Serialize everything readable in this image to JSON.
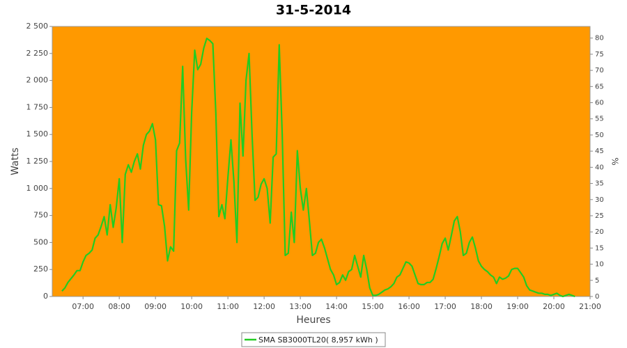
{
  "chart_data": {
    "type": "line",
    "title": "31-5-2014",
    "x_label": "Heures",
    "y_label": "Watts",
    "y2_label": "%",
    "background": "#ff9900",
    "grid": false,
    "legend": "bottom",
    "x": [
      "06:25",
      "06:30",
      "06:35",
      "06:45",
      "06:50",
      "06:55",
      "07:00",
      "07:05",
      "07:10",
      "07:15",
      "07:20",
      "07:25",
      "07:30",
      "07:35",
      "07:40",
      "07:45",
      "07:50",
      "07:55",
      "08:00",
      "08:05",
      "08:10",
      "08:15",
      "08:20",
      "08:25",
      "08:30",
      "08:35",
      "08:40",
      "08:45",
      "08:50",
      "08:55",
      "09:00",
      "09:05",
      "09:10",
      "09:15",
      "09:20",
      "09:25",
      "09:30",
      "09:35",
      "09:40",
      "09:45",
      "09:50",
      "09:55",
      "10:00",
      "10:05",
      "10:10",
      "10:15",
      "10:20",
      "10:25",
      "10:30",
      "10:35",
      "10:40",
      "10:45",
      "10:50",
      "10:55",
      "11:00",
      "11:05",
      "11:10",
      "11:15",
      "11:20",
      "11:25",
      "11:30",
      "11:35",
      "11:40",
      "11:45",
      "11:50",
      "11:55",
      "12:00",
      "12:05",
      "12:10",
      "12:15",
      "12:20",
      "12:25",
      "12:30",
      "12:35",
      "12:40",
      "12:45",
      "12:50",
      "12:55",
      "13:00",
      "13:05",
      "13:10",
      "13:15",
      "13:20",
      "13:25",
      "13:30",
      "13:35",
      "13:40",
      "13:45",
      "13:50",
      "13:55",
      "14:00",
      "14:05",
      "14:10",
      "14:15",
      "14:20",
      "14:25",
      "14:30",
      "14:35",
      "14:40",
      "14:45",
      "14:50",
      "14:55",
      "15:00",
      "15:05",
      "15:10",
      "15:15",
      "15:20",
      "15:25",
      "15:30",
      "15:35",
      "15:40",
      "15:45",
      "15:50",
      "15:55",
      "16:00",
      "16:05",
      "16:10",
      "16:15",
      "16:20",
      "16:25",
      "16:30",
      "16:35",
      "16:40",
      "16:45",
      "16:50",
      "16:55",
      "17:00",
      "17:05",
      "17:10",
      "17:15",
      "17:20",
      "17:25",
      "17:30",
      "17:35",
      "17:40",
      "17:45",
      "17:50",
      "17:55",
      "18:00",
      "18:05",
      "18:10",
      "18:15",
      "18:20",
      "18:25",
      "18:30",
      "18:35",
      "18:40",
      "18:45",
      "18:50",
      "18:55",
      "19:00",
      "19:05",
      "19:10",
      "19:15",
      "19:20",
      "19:25",
      "19:30",
      "19:35",
      "19:40",
      "19:45",
      "19:50",
      "19:55",
      "20:00",
      "20:05",
      "20:10",
      "20:15",
      "20:20",
      "20:25",
      "20:30",
      "20:35"
    ],
    "series": [
      {
        "name": "SMA SB3000TL20( 8,957 kWh )",
        "color": "#22cc22",
        "values": [
          50,
          80,
          130,
          200,
          240,
          240,
          320,
          380,
          400,
          430,
          540,
          570,
          650,
          740,
          570,
          850,
          640,
          820,
          1090,
          500,
          1130,
          1220,
          1150,
          1250,
          1320,
          1180,
          1400,
          1500,
          1530,
          1600,
          1450,
          850,
          840,
          650,
          330,
          460,
          420,
          1350,
          1420,
          2130,
          1270,
          800,
          1700,
          2280,
          2100,
          2150,
          2300,
          2390,
          2370,
          2340,
          1700,
          740,
          850,
          720,
          1100,
          1450,
          1060,
          500,
          1790,
          1300,
          2000,
          2250,
          1500,
          890,
          920,
          1040,
          1090,
          1000,
          680,
          1290,
          1320,
          2330,
          1500,
          380,
          400,
          780,
          500,
          1350,
          1000,
          800,
          1000,
          700,
          380,
          400,
          500,
          530,
          450,
          350,
          250,
          200,
          110,
          130,
          200,
          150,
          230,
          250,
          380,
          280,
          180,
          380,
          250,
          80,
          10,
          10,
          20,
          40,
          60,
          70,
          90,
          120,
          180,
          200,
          260,
          320,
          310,
          280,
          200,
          120,
          110,
          110,
          130,
          130,
          160,
          260,
          370,
          490,
          540,
          430,
          560,
          700,
          740,
          600,
          380,
          400,
          500,
          550,
          450,
          330,
          280,
          250,
          230,
          200,
          180,
          120,
          180,
          160,
          170,
          190,
          250,
          260,
          260,
          220,
          180,
          100,
          60,
          50,
          40,
          30,
          30,
          20,
          20,
          10,
          20,
          30,
          10,
          0,
          10,
          20,
          10,
          0
        ]
      }
    ],
    "xlim": [
      "06:09",
      "21:00"
    ],
    "xticks": [
      "07:00",
      "08:00",
      "09:00",
      "10:00",
      "11:00",
      "12:00",
      "13:00",
      "14:00",
      "15:00",
      "16:00",
      "17:00",
      "18:00",
      "19:00",
      "20:00",
      "21:00"
    ],
    "ylim": [
      0,
      2500
    ],
    "yticks": [
      0,
      250,
      500,
      750,
      {
        "value": 1000,
        "label": "1 000"
      },
      {
        "value": 1250,
        "label": "1 250"
      },
      {
        "value": 1500,
        "label": "1 500"
      },
      {
        "value": 1750,
        "label": "1 750"
      },
      {
        "value": 2000,
        "label": "2 000"
      },
      {
        "value": 2250,
        "label": "2 250"
      },
      {
        "value": 2500,
        "label": "2 500"
      }
    ],
    "y2lim": [
      0,
      83.6
    ],
    "y2ticks": [
      0,
      5,
      10,
      15,
      20,
      25,
      30,
      35,
      40,
      45,
      50,
      55,
      60,
      65,
      70,
      75,
      80
    ]
  }
}
